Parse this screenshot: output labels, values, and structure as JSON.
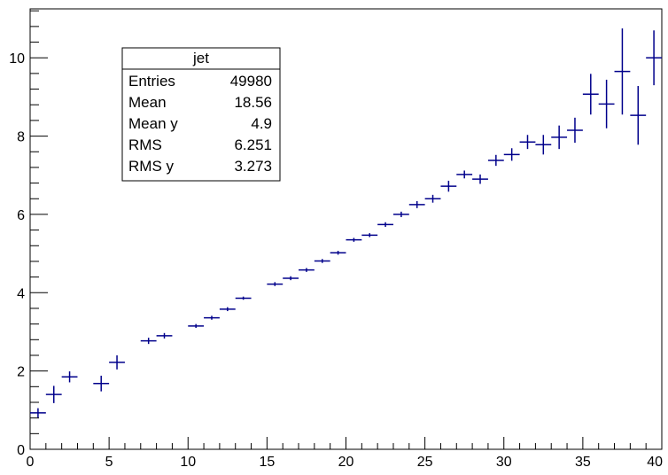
{
  "chart_data": {
    "type": "scatter",
    "title": "",
    "xlabel": "",
    "ylabel": "",
    "xlim": [
      0,
      40
    ],
    "ylim": [
      0,
      11.25
    ],
    "x_ticks": [
      0,
      5,
      10,
      15,
      20,
      25,
      30,
      35,
      40
    ],
    "y_ticks": [
      0,
      2,
      4,
      6,
      8,
      10
    ],
    "grid": false,
    "marker_color": "#00008b",
    "stats_box": {
      "title": "jet",
      "rows": [
        {
          "label": "Entries",
          "value": "49980"
        },
        {
          "label": "Mean",
          "value": "18.56"
        },
        {
          "label": "Mean y",
          "value": "4.9"
        },
        {
          "label": "RMS",
          "value": "6.251"
        },
        {
          "label": "RMS y",
          "value": "3.273"
        }
      ]
    },
    "series": [
      {
        "points": [
          {
            "x": 0.5,
            "y": 0.93,
            "xerr": 0.5,
            "yerr": 0.12
          },
          {
            "x": 1.5,
            "y": 1.4,
            "xerr": 0.5,
            "yerr": 0.22
          },
          {
            "x": 2.5,
            "y": 1.85,
            "xerr": 0.5,
            "yerr": 0.14
          },
          {
            "x": 4.5,
            "y": 1.68,
            "xerr": 0.5,
            "yerr": 0.2
          },
          {
            "x": 5.5,
            "y": 2.22,
            "xerr": 0.5,
            "yerr": 0.18
          },
          {
            "x": 7.5,
            "y": 2.77,
            "xerr": 0.5,
            "yerr": 0.08
          },
          {
            "x": 8.5,
            "y": 2.9,
            "xerr": 0.5,
            "yerr": 0.07
          },
          {
            "x": 10.5,
            "y": 3.15,
            "xerr": 0.5,
            "yerr": 0.05
          },
          {
            "x": 11.5,
            "y": 3.36,
            "xerr": 0.5,
            "yerr": 0.05
          },
          {
            "x": 12.5,
            "y": 3.58,
            "xerr": 0.5,
            "yerr": 0.05
          },
          {
            "x": 13.5,
            "y": 3.86,
            "xerr": 0.5,
            "yerr": 0.04
          },
          {
            "x": 15.5,
            "y": 4.22,
            "xerr": 0.5,
            "yerr": 0.05
          },
          {
            "x": 16.5,
            "y": 4.37,
            "xerr": 0.5,
            "yerr": 0.05
          },
          {
            "x": 17.5,
            "y": 4.58,
            "xerr": 0.5,
            "yerr": 0.05
          },
          {
            "x": 18.5,
            "y": 4.81,
            "xerr": 0.5,
            "yerr": 0.05
          },
          {
            "x": 19.5,
            "y": 5.02,
            "xerr": 0.5,
            "yerr": 0.05
          },
          {
            "x": 20.5,
            "y": 5.35,
            "xerr": 0.5,
            "yerr": 0.05
          },
          {
            "x": 21.5,
            "y": 5.47,
            "xerr": 0.5,
            "yerr": 0.05
          },
          {
            "x": 22.5,
            "y": 5.74,
            "xerr": 0.5,
            "yerr": 0.06
          },
          {
            "x": 23.5,
            "y": 6.0,
            "xerr": 0.5,
            "yerr": 0.07
          },
          {
            "x": 24.5,
            "y": 6.25,
            "xerr": 0.5,
            "yerr": 0.09
          },
          {
            "x": 25.5,
            "y": 6.4,
            "xerr": 0.5,
            "yerr": 0.1
          },
          {
            "x": 26.5,
            "y": 6.72,
            "xerr": 0.5,
            "yerr": 0.14
          },
          {
            "x": 27.5,
            "y": 7.02,
            "xerr": 0.5,
            "yerr": 0.1
          },
          {
            "x": 28.5,
            "y": 6.9,
            "xerr": 0.5,
            "yerr": 0.12
          },
          {
            "x": 29.5,
            "y": 7.38,
            "xerr": 0.5,
            "yerr": 0.14
          },
          {
            "x": 30.5,
            "y": 7.53,
            "xerr": 0.5,
            "yerr": 0.16
          },
          {
            "x": 31.5,
            "y": 7.85,
            "xerr": 0.5,
            "yerr": 0.18
          },
          {
            "x": 32.5,
            "y": 7.78,
            "xerr": 0.5,
            "yerr": 0.25
          },
          {
            "x": 33.5,
            "y": 7.97,
            "xerr": 0.5,
            "yerr": 0.3
          },
          {
            "x": 34.5,
            "y": 8.15,
            "xerr": 0.5,
            "yerr": 0.32
          },
          {
            "x": 35.5,
            "y": 9.07,
            "xerr": 0.5,
            "yerr": 0.52
          },
          {
            "x": 36.5,
            "y": 8.82,
            "xerr": 0.5,
            "yerr": 0.62
          },
          {
            "x": 37.5,
            "y": 9.65,
            "xerr": 0.5,
            "yerr": 1.1
          },
          {
            "x": 38.5,
            "y": 8.53,
            "xerr": 0.5,
            "yerr": 0.75
          },
          {
            "x": 39.5,
            "y": 10.0,
            "xerr": 0.5,
            "yerr": 0.7
          }
        ]
      }
    ]
  }
}
